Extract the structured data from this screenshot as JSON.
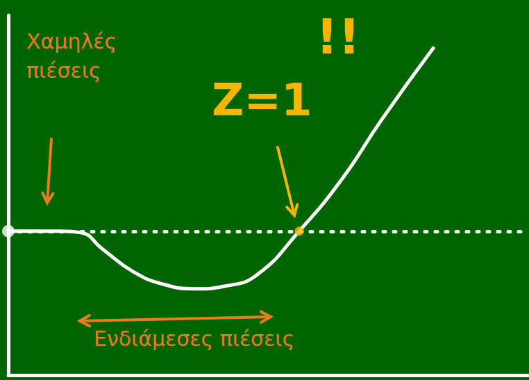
{
  "chart_data": {
    "type": "line",
    "x": [
      0,
      1,
      1.4,
      1.8,
      2.4,
      3,
      3.6,
      4.2,
      4.8,
      5.6,
      6.4,
      7.2,
      8.2
    ],
    "values": [
      1,
      1,
      0.99,
      0.88,
      0.72,
      0.63,
      0.6,
      0.62,
      0.7,
      1.0,
      1.35,
      1.78,
      2.28
    ],
    "color": "#ffffff",
    "xlim": [
      0,
      10
    ],
    "ylim": [
      0,
      2.5
    ],
    "reference_value": 1,
    "marked_point": {
      "x": 5.6,
      "y": 1
    },
    "tick_labels": false,
    "grid": false,
    "annotations": [
      {
        "text": "Χαμηλές πιέσεις"
      },
      {
        "text": "Ενδιάμεσες πιέσεις"
      },
      {
        "text": "Z=1"
      },
      {
        "text": "!!"
      }
    ]
  }
}
